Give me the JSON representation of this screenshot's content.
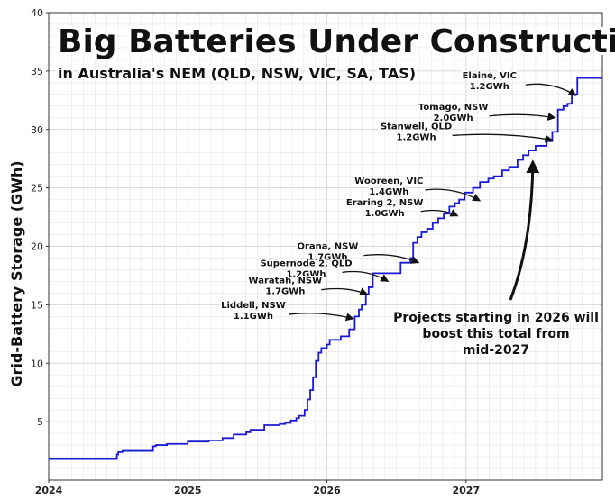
{
  "chart_data": {
    "type": "line",
    "title": "Big Batteries Under Construction",
    "subtitle": "in Australia's NEM (QLD, NSW, VIC, SA, TAS)",
    "xlabel": "",
    "ylabel": "Grid-Battery Storage (GWh)",
    "xlim": [
      2024.0,
      2027.98
    ],
    "ylim": [
      0,
      40
    ],
    "x_ticks": [
      2024,
      2025,
      2026,
      2027
    ],
    "x_tick_labels": [
      "2024",
      "2025",
      "2026",
      "2027"
    ],
    "y_ticks": [
      5,
      10,
      15,
      20,
      25,
      30,
      35,
      40
    ],
    "y_tick_labels": [
      "5",
      "10",
      "15",
      "20",
      "25",
      "30",
      "35",
      "40"
    ],
    "grid": true,
    "line_color": "#1a1ad6",
    "series": [
      {
        "step": true,
        "x": [
          2024.0,
          2024.49,
          2024.5,
          2024.53,
          2024.75,
          2024.77,
          2024.85,
          2025.0,
          2025.15,
          2025.25,
          2025.33,
          2025.42,
          2025.45,
          2025.55,
          2025.66,
          2025.7,
          2025.74,
          2025.78,
          2025.8,
          2025.84,
          2025.86,
          2025.88,
          2025.9,
          2025.92,
          2025.94,
          2025.96,
          2025.98,
          2026.0,
          2026.02,
          2026.1,
          2026.16,
          2026.2,
          2026.23,
          2026.25,
          2026.28,
          2026.3,
          2026.33,
          2026.4,
          2026.45,
          2026.53,
          2026.6,
          2026.62,
          2026.65,
          2026.68,
          2026.72,
          2026.76,
          2026.8,
          2026.84,
          2026.88,
          2026.92,
          2026.95,
          2026.99,
          2027.05,
          2027.1,
          2027.16,
          2027.2,
          2027.26,
          2027.31,
          2027.37,
          2027.41,
          2027.45,
          2027.5,
          2027.58,
          2027.62,
          2027.66,
          2027.7,
          2027.73,
          2027.76,
          2027.8,
          2027.85,
          2027.98
        ],
        "values": [
          1.8,
          2.2,
          2.4,
          2.5,
          2.9,
          3.0,
          3.1,
          3.3,
          3.4,
          3.6,
          3.9,
          4.1,
          4.3,
          4.7,
          4.8,
          4.9,
          5.1,
          5.3,
          5.5,
          6.0,
          6.9,
          7.7,
          8.8,
          10.2,
          10.9,
          11.3,
          11.3,
          11.6,
          12.0,
          12.3,
          12.9,
          14.0,
          14.6,
          15.0,
          15.9,
          16.5,
          17.7,
          17.7,
          17.7,
          18.6,
          19.0,
          20.3,
          20.8,
          21.2,
          21.5,
          22.0,
          22.4,
          22.8,
          23.4,
          23.7,
          24.0,
          24.6,
          25.0,
          25.5,
          25.8,
          26.0,
          26.5,
          26.8,
          27.4,
          27.8,
          28.2,
          28.6,
          29.0,
          29.8,
          31.7,
          32.0,
          32.2,
          33.0,
          34.4,
          34.4,
          34.4
        ]
      }
    ],
    "annotations": [
      {
        "lines": [
          "Elaine, VIC",
          "1.2GWh"
        ],
        "target": [
          2027.81,
          32.9
        ]
      },
      {
        "lines": [
          "Tomago, NSW",
          "2.0GWh"
        ],
        "target": [
          2027.66,
          31.0
        ]
      },
      {
        "lines": [
          "Stanwell, QLD",
          "1.2GWh"
        ],
        "target": [
          2027.64,
          29.1
        ]
      },
      {
        "lines": [
          "Wooreen, VIC",
          "1.4GWh"
        ],
        "target": [
          2027.12,
          23.9
        ]
      },
      {
        "lines": [
          "Eraring 2, NSW",
          "1.0GWh"
        ],
        "target": [
          2026.96,
          22.6
        ]
      },
      {
        "lines": [
          "Orana, NSW",
          "1.7GWh"
        ],
        "target": [
          2026.68,
          18.6
        ]
      },
      {
        "lines": [
          "Supernode 2, QLD",
          "1.2GWh"
        ],
        "target": [
          2026.46,
          17.0
        ]
      },
      {
        "lines": [
          "Waratah, NSW",
          "1.7GWh"
        ],
        "target": [
          2026.31,
          15.9
        ]
      },
      {
        "lines": [
          "Liddell, NSW",
          "1.1GWh"
        ],
        "target": [
          2026.21,
          13.8
        ]
      }
    ],
    "callout": {
      "lines": [
        "Projects starting in 2026 will",
        "boost this total from",
        "mid-2027"
      ],
      "target": [
        2027.48,
        27.5
      ]
    }
  }
}
